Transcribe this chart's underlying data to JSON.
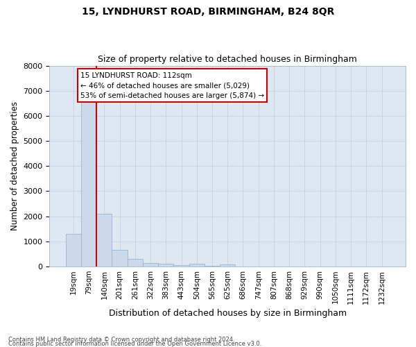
{
  "title1": "15, LYNDHURST ROAD, BIRMINGHAM, B24 8QR",
  "title2": "Size of property relative to detached houses in Birmingham",
  "xlabel": "Distribution of detached houses by size in Birmingham",
  "ylabel": "Number of detached properties",
  "footnote1": "Contains HM Land Registry data © Crown copyright and database right 2024.",
  "footnote2": "Contains public sector information licensed under the Open Government Licence v3.0.",
  "categories": [
    "19sqm",
    "79sqm",
    "140sqm",
    "201sqm",
    "261sqm",
    "322sqm",
    "383sqm",
    "443sqm",
    "504sqm",
    "565sqm",
    "625sqm",
    "686sqm",
    "747sqm",
    "807sqm",
    "868sqm",
    "929sqm",
    "990sqm",
    "1050sqm",
    "1111sqm",
    "1172sqm",
    "1232sqm"
  ],
  "values": [
    1300,
    6600,
    2100,
    650,
    300,
    150,
    100,
    50,
    100,
    30,
    90,
    0,
    0,
    0,
    0,
    0,
    0,
    0,
    0,
    0,
    0
  ],
  "bar_color": "#ccd9ea",
  "bar_edge_color": "#9ab4d0",
  "vline_x": 1.5,
  "vline_color": "#cc0000",
  "ylim_max": 8000,
  "yticks": [
    0,
    1000,
    2000,
    3000,
    4000,
    5000,
    6000,
    7000,
    8000
  ],
  "annotation_text": "15 LYNDHURST ROAD: 112sqm\n← 46% of detached houses are smaller (5,029)\n53% of semi-detached houses are larger (5,874) →",
  "annotation_box_facecolor": "#ffffff",
  "annotation_box_edgecolor": "#cc0000",
  "grid_color": "#c8d4e3",
  "plot_bg_color": "#dde8f3"
}
